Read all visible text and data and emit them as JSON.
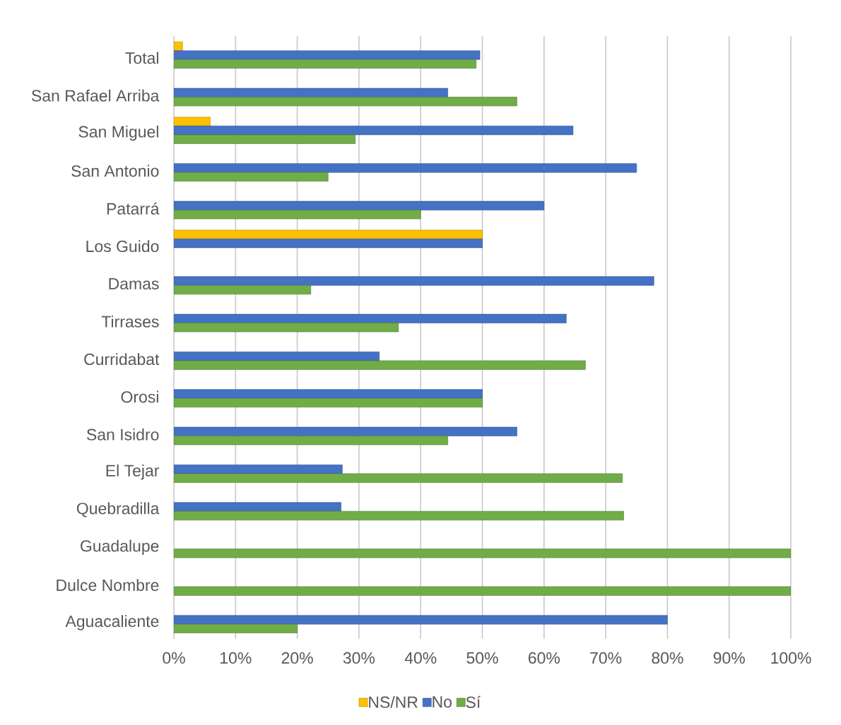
{
  "chart_data": {
    "type": "bar",
    "orientation": "horizontal",
    "categories": [
      "Total",
      "San Rafael Arriba",
      "San Miguel",
      "San Antonio",
      "Patarrá",
      "Los Guido",
      "Damas",
      "Tirrases",
      "Curridabat",
      "Orosi",
      "San Isidro",
      "El Tejar",
      "Quebradilla",
      "Guadalupe",
      "Dulce Nombre",
      "Aguacaliente"
    ],
    "series": [
      {
        "name": "NS/NR",
        "color": "#ffc000",
        "values": [
          1.4,
          null,
          5.9,
          null,
          null,
          50,
          null,
          null,
          null,
          null,
          null,
          null,
          null,
          null,
          null,
          null
        ]
      },
      {
        "name": "No",
        "color": "#4472c4",
        "values": [
          49.6,
          44.4,
          64.7,
          75,
          60,
          50,
          77.8,
          63.6,
          33.3,
          50,
          55.6,
          27.3,
          27.1,
          null,
          null,
          80
        ]
      },
      {
        "name": "Sí",
        "color": "#70ad47",
        "values": [
          49.0,
          55.6,
          29.4,
          25,
          40,
          null,
          22.2,
          36.4,
          66.7,
          50,
          44.4,
          72.7,
          72.9,
          100,
          100,
          20
        ]
      }
    ],
    "xlim": [
      0,
      100
    ],
    "xticks": [
      {
        "value": 0,
        "label": "0%"
      },
      {
        "value": 10,
        "label": "10%"
      },
      {
        "value": 20,
        "label": "20%"
      },
      {
        "value": 30,
        "label": "30%"
      },
      {
        "value": 40,
        "label": "40%"
      },
      {
        "value": 50,
        "label": "50%"
      },
      {
        "value": 60,
        "label": "60%"
      },
      {
        "value": 70,
        "label": "70%"
      },
      {
        "value": 80,
        "label": "80%"
      },
      {
        "value": 90,
        "label": "90%"
      },
      {
        "value": 100,
        "label": "100%"
      }
    ],
    "grid": "x",
    "legend": "bottom"
  }
}
